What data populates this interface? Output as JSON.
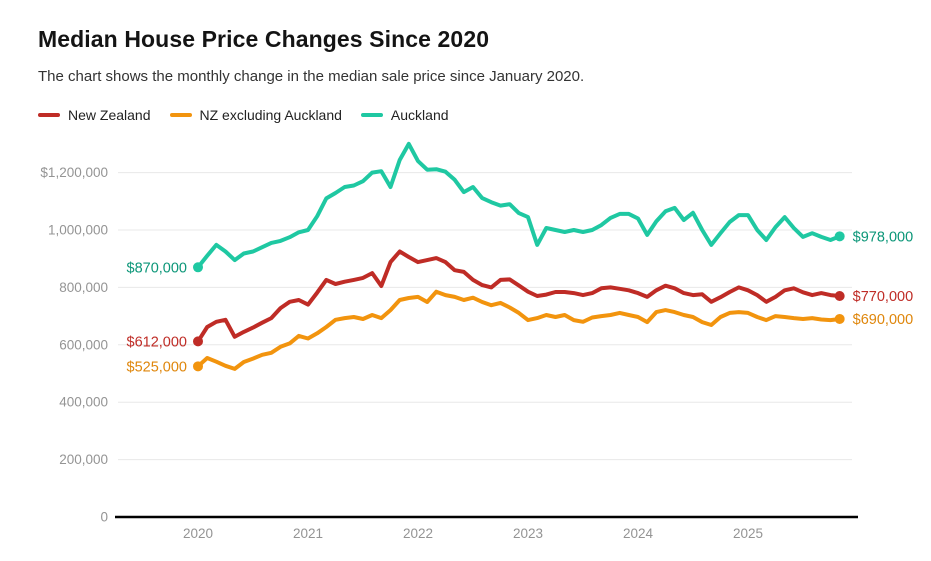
{
  "header": {
    "title": "Median House Price Changes Since 2020",
    "subtitle": "The chart shows the monthly change in the median sale price since January 2020."
  },
  "legend": {
    "items": [
      {
        "label": "New Zealand",
        "color": "#bf2c26"
      },
      {
        "label": "NZ excluding Auckland",
        "color": "#f2940e"
      },
      {
        "label": "Auckland",
        "color": "#1fc8a2"
      }
    ]
  },
  "chart_data": {
    "type": "line",
    "title": "Median House Price Changes Since 2020",
    "subtitle": "The chart shows the monthly change in the median sale price since January 2020.",
    "x_unit": "month",
    "x_range": [
      "2020-01",
      "2025-11"
    ],
    "x_tick_labels": [
      "2020",
      "2021",
      "2022",
      "2023",
      "2024",
      "2025"
    ],
    "y_ticks": [
      {
        "label": "$1,200,000",
        "value": 1200000
      },
      {
        "label": "1,000,000",
        "value": 1000000
      },
      {
        "label": "800,000",
        "value": 800000
      },
      {
        "label": "600,000",
        "value": 600000
      },
      {
        "label": "400,000",
        "value": 400000
      },
      {
        "label": "200,000",
        "value": 200000
      },
      {
        "label": "0",
        "value": 0
      }
    ],
    "ylim": [
      0,
      1350000
    ],
    "grid": true,
    "legend_position": "top",
    "series": [
      {
        "name": "New Zealand",
        "color": "#bf2c26",
        "label_color": "#bf2c26",
        "start_label": "$612,000",
        "end_label": "$770,000",
        "values": [
          612000,
          662000,
          680000,
          687000,
          628000,
          645000,
          660000,
          677000,
          693000,
          728000,
          750000,
          756000,
          740000,
          782000,
          826000,
          812000,
          820000,
          826000,
          833000,
          850000,
          805000,
          888000,
          925000,
          906000,
          888000,
          895000,
          902000,
          888000,
          860000,
          854000,
          826000,
          808000,
          800000,
          826000,
          828000,
          807000,
          785000,
          770000,
          775000,
          784000,
          784000,
          780000,
          773000,
          780000,
          797000,
          800000,
          795000,
          790000,
          780000,
          767000,
          790000,
          806000,
          797000,
          780000,
          773000,
          776000,
          750000,
          766000,
          784000,
          800000,
          790000,
          773000,
          750000,
          767000,
          790000,
          797000,
          783000,
          773000,
          780000,
          773000,
          770000
        ]
      },
      {
        "name": "NZ excluding Auckland",
        "color": "#f2940e",
        "label_color": "#df860b",
        "start_label": "$525,000",
        "end_label": "$690,000",
        "values": [
          525000,
          554000,
          541000,
          527000,
          516000,
          540000,
          552000,
          565000,
          572000,
          593000,
          605000,
          631000,
          622000,
          640000,
          662000,
          687000,
          693000,
          697000,
          690000,
          704000,
          693000,
          721000,
          756000,
          763000,
          767000,
          749000,
          785000,
          773000,
          767000,
          756000,
          764000,
          749000,
          738000,
          746000,
          730000,
          711000,
          686000,
          693000,
          704000,
          697000,
          704000,
          686000,
          680000,
          695000,
          700000,
          704000,
          711000,
          704000,
          697000,
          679000,
          714000,
          721000,
          714000,
          704000,
          697000,
          679000,
          669000,
          697000,
          711000,
          714000,
          711000,
          697000,
          686000,
          700000,
          697000,
          693000,
          690000,
          693000,
          688000,
          686000,
          690000
        ]
      },
      {
        "name": "Auckland",
        "color": "#1fc8a2",
        "label_color": "#0b9678",
        "start_label": "$870,000",
        "end_label": "$978,000",
        "values": [
          870000,
          910000,
          948000,
          925000,
          895000,
          918000,
          925000,
          940000,
          955000,
          962000,
          975000,
          992000,
          1000000,
          1048000,
          1110000,
          1129000,
          1150000,
          1155000,
          1170000,
          1200000,
          1205000,
          1150000,
          1244000,
          1300000,
          1240000,
          1210000,
          1212000,
          1203000,
          1175000,
          1132000,
          1150000,
          1111000,
          1097000,
          1085000,
          1090000,
          1059000,
          1045000,
          948000,
          1007000,
          1000000,
          993000,
          1000000,
          993000,
          1000000,
          1017000,
          1042000,
          1056000,
          1056000,
          1040000,
          983000,
          1030000,
          1065000,
          1077000,
          1035000,
          1060000,
          1000000,
          948000,
          989000,
          1028000,
          1052000,
          1052000,
          1000000,
          965000,
          1010000,
          1045000,
          1007000,
          976000,
          989000,
          976000,
          965000,
          978000
        ]
      }
    ],
    "style": {
      "gridline_color": "#e8e8e8",
      "axis_line_color": "#000000",
      "tick_label_color": "#949494",
      "line_width": 4
    }
  }
}
